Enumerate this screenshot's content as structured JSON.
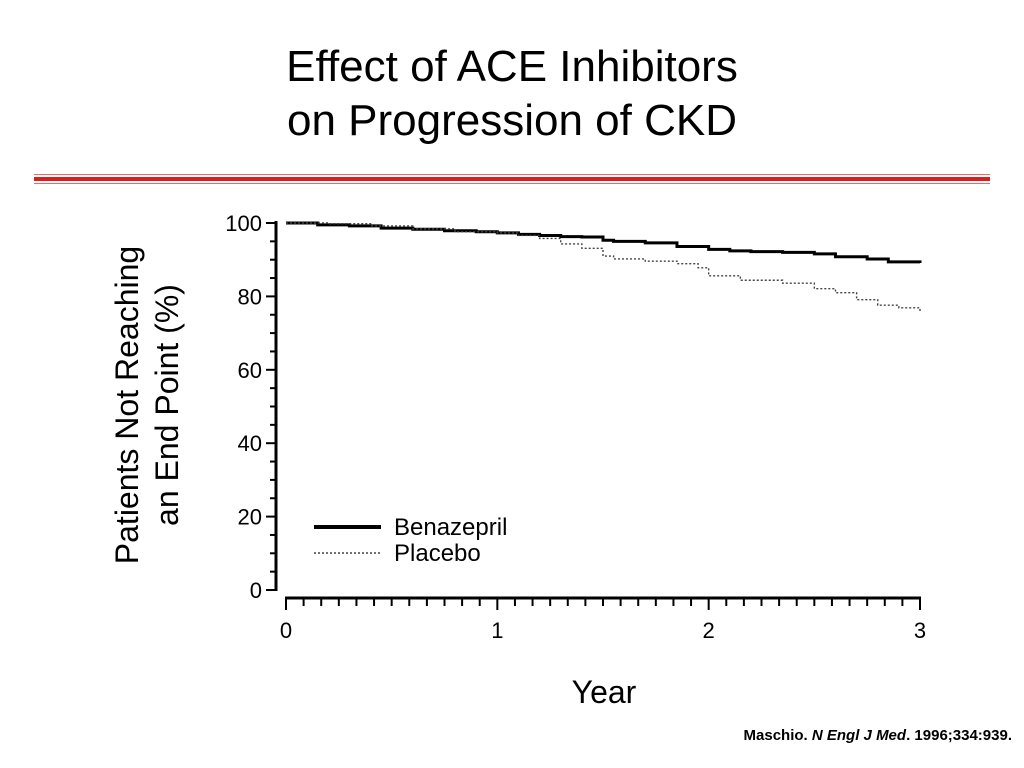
{
  "slide": {
    "title_line1": "Effect of ACE Inhibitors",
    "title_line2": "on Progression of CKD",
    "accent_color": "#d81e1e"
  },
  "citation": {
    "author": "Maschio.",
    "journal": "N Engl J Med",
    "details": ". 1996;334:939."
  },
  "chart_data": {
    "type": "line",
    "xlabel": "Year",
    "ylabel_line1": "Patients Not Reaching",
    "ylabel_line2": "an End Point (%)",
    "xlim": [
      0,
      3
    ],
    "ylim": [
      0,
      100
    ],
    "x_ticks": [
      "0",
      "1",
      "2",
      "3"
    ],
    "y_ticks": [
      "0",
      "20",
      "40",
      "60",
      "80",
      "100"
    ],
    "grid": false,
    "legend_position": "bottom-left",
    "series": [
      {
        "name": "Benazepril",
        "style": "solid",
        "x": [
          0,
          0.15,
          0.3,
          0.45,
          0.6,
          0.75,
          0.9,
          1.0,
          1.1,
          1.2,
          1.3,
          1.4,
          1.5,
          1.55,
          1.7,
          1.85,
          2.0,
          2.1,
          2.2,
          2.35,
          2.5,
          2.6,
          2.75,
          2.85,
          3.0
        ],
        "y": [
          100,
          99.5,
          99.2,
          98.6,
          98.3,
          97.9,
          97.6,
          97.3,
          96.9,
          96.6,
          96.3,
          96.2,
          95.3,
          95.0,
          94.6,
          93.6,
          92.8,
          92.4,
          92.2,
          92.0,
          91.6,
          90.8,
          90.2,
          89.4,
          89.1
        ]
      },
      {
        "name": "Placebo",
        "style": "dotted",
        "x": [
          0,
          0.2,
          0.4,
          0.6,
          0.8,
          1.0,
          1.1,
          1.2,
          1.3,
          1.4,
          1.5,
          1.55,
          1.7,
          1.85,
          1.95,
          2.0,
          2.15,
          2.35,
          2.5,
          2.6,
          2.7,
          2.8,
          2.9,
          3.0
        ],
        "y": [
          100,
          99.8,
          99.2,
          98.4,
          97.6,
          97.3,
          96.6,
          95.8,
          94.3,
          93.1,
          91.0,
          90.2,
          89.6,
          88.9,
          87.8,
          85.6,
          84.4,
          83.6,
          82.1,
          81.0,
          79.1,
          77.6,
          76.9,
          75.5
        ]
      }
    ]
  }
}
